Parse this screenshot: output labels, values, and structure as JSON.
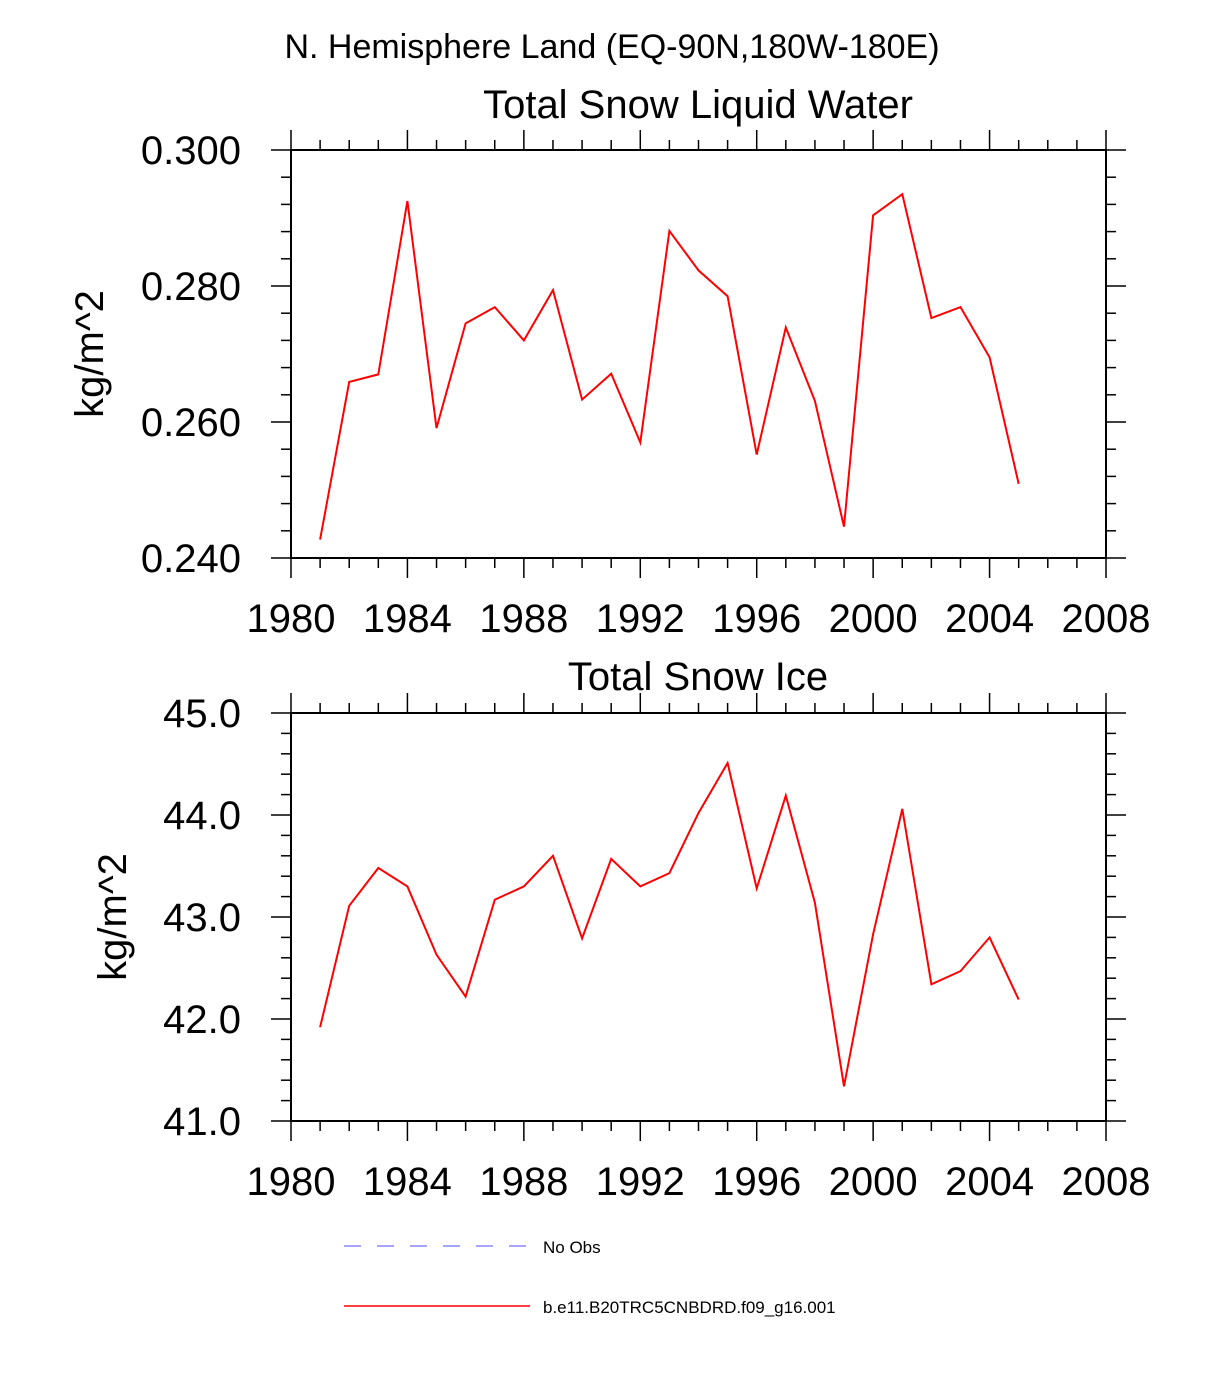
{
  "figure": {
    "supertitle": "N. Hemisphere Land (EQ-90N,180W-180E)"
  },
  "chart_data": [
    {
      "type": "line",
      "title": "Total Snow Liquid Water",
      "xlabel": "",
      "ylabel": "kg/m^2",
      "xlim": [
        1980,
        2008
      ],
      "ylim": [
        0.24,
        0.3
      ],
      "xticks": [
        1980,
        1984,
        1988,
        1992,
        1996,
        2000,
        2004,
        2008
      ],
      "xtick_labels": [
        "1980",
        "1984",
        "1988",
        "1992",
        "1996",
        "2000",
        "2004",
        "2008"
      ],
      "yticks": [
        0.24,
        0.26,
        0.28,
        0.3
      ],
      "ytick_labels": [
        "0.240",
        "0.260",
        "0.280",
        "0.300"
      ],
      "x": [
        1981,
        1982,
        1983,
        1984,
        1985,
        1986,
        1987,
        1988,
        1989,
        1990,
        1991,
        1992,
        1993,
        1994,
        1995,
        1996,
        1997,
        1998,
        1999,
        2000,
        2001,
        2002,
        2003,
        2004,
        2005
      ],
      "series": [
        {
          "name": "b.e11.B20TRC5CNBDRD.f09_g16.001",
          "color": "#ff0000",
          "values": [
            0.2427,
            0.2659,
            0.267,
            0.2925,
            0.2591,
            0.2745,
            0.2769,
            0.272,
            0.2794,
            0.2633,
            0.2671,
            0.257,
            0.2881,
            0.2823,
            0.2785,
            0.2552,
            0.2739,
            0.2631,
            0.2446,
            0.2904,
            0.2935,
            0.2753,
            0.2769,
            0.2695,
            0.2509
          ]
        }
      ]
    },
    {
      "type": "line",
      "title": "Total Snow Ice",
      "xlabel": "",
      "ylabel": "kg/m^2",
      "xlim": [
        1980,
        2008
      ],
      "ylim": [
        41.0,
        45.0
      ],
      "xticks": [
        1980,
        1984,
        1988,
        1992,
        1996,
        2000,
        2004,
        2008
      ],
      "xtick_labels": [
        "1980",
        "1984",
        "1988",
        "1992",
        "1996",
        "2000",
        "2004",
        "2008"
      ],
      "yticks": [
        41.0,
        42.0,
        43.0,
        44.0,
        45.0
      ],
      "ytick_labels": [
        "41.0",
        "42.0",
        "43.0",
        "44.0",
        "45.0"
      ],
      "x": [
        1981,
        1982,
        1983,
        1984,
        1985,
        1986,
        1987,
        1988,
        1989,
        1990,
        1991,
        1992,
        1993,
        1994,
        1995,
        1996,
        1997,
        1998,
        1999,
        2000,
        2001,
        2002,
        2003,
        2004,
        2005
      ],
      "series": [
        {
          "name": "b.e11.B20TRC5CNBDRD.f09_g16.001",
          "color": "#ff0000",
          "values": [
            41.92,
            43.11,
            43.48,
            43.3,
            42.63,
            42.22,
            43.17,
            43.3,
            43.6,
            42.79,
            43.57,
            43.3,
            43.43,
            44.02,
            44.51,
            43.28,
            44.19,
            43.14,
            41.34,
            42.83,
            44.06,
            42.34,
            42.47,
            42.8,
            42.19
          ]
        }
      ]
    }
  ],
  "legend": {
    "position": "bottom",
    "items": [
      {
        "label": "No Obs",
        "color": "#8888ff",
        "style": "dashed"
      },
      {
        "label": "b.e11.B20TRC5CNBDRD.f09_g16.001",
        "color": "#ff0000",
        "style": "solid"
      }
    ]
  }
}
